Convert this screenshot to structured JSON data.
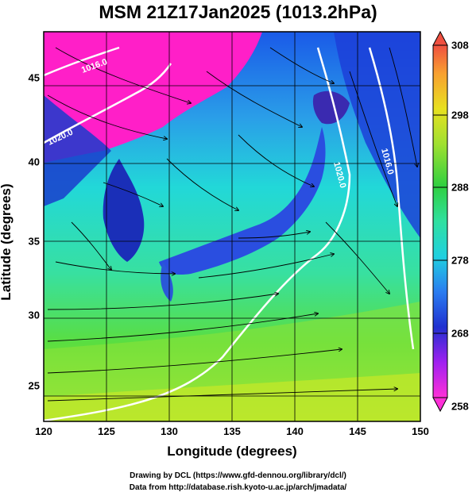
{
  "title": "MSM 21Z17Jan2025 (1013.2hPa)",
  "x_axis": {
    "label": "Longitude (degrees)",
    "ticks": [
      "120",
      "125",
      "130",
      "135",
      "140",
      "145",
      "150"
    ],
    "range": [
      120,
      150
    ]
  },
  "y_axis": {
    "label": "Latitude  (degrees)",
    "ticks": [
      "25",
      "30",
      "35",
      "40",
      "45"
    ],
    "range": [
      22.4,
      47.6
    ]
  },
  "colorbar": {
    "ticks": [
      "308",
      "298",
      "288",
      "278",
      "268",
      "258"
    ],
    "range": [
      258,
      308
    ]
  },
  "contour_labels": [
    "1016.0",
    "1020.0",
    "1020.0",
    "1016.0"
  ],
  "credits": {
    "line1": "Drawing by DCL (https://www.gfd-dennou.org/library/dcl/)",
    "line2": "Data from http://database.rish.kyoto-u.ac.jp/arch/jmadata/"
  },
  "colors": {
    "cold": "#ff1fc8",
    "cool": "#2a55e0",
    "mid": "#22d8d8",
    "warm": "#30d050",
    "hot": "#e8e020"
  }
}
